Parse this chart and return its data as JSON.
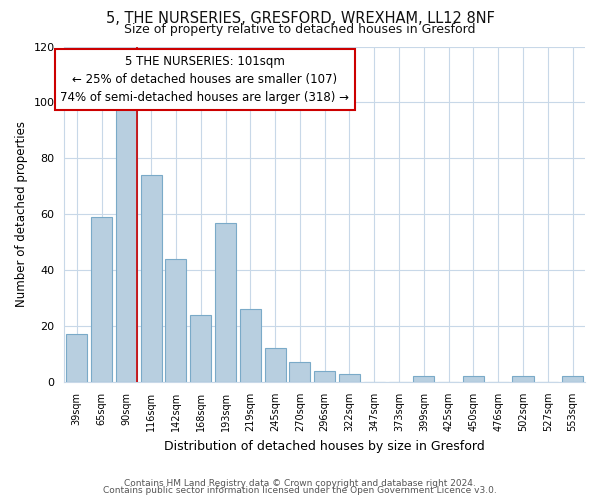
{
  "title": "5, THE NURSERIES, GRESFORD, WREXHAM, LL12 8NF",
  "subtitle": "Size of property relative to detached houses in Gresford",
  "xlabel": "Distribution of detached houses by size in Gresford",
  "ylabel": "Number of detached properties",
  "categories": [
    "39sqm",
    "65sqm",
    "90sqm",
    "116sqm",
    "142sqm",
    "168sqm",
    "193sqm",
    "219sqm",
    "245sqm",
    "270sqm",
    "296sqm",
    "322sqm",
    "347sqm",
    "373sqm",
    "399sqm",
    "425sqm",
    "450sqm",
    "476sqm",
    "502sqm",
    "527sqm",
    "553sqm"
  ],
  "values": [
    17,
    59,
    98,
    74,
    44,
    24,
    57,
    26,
    12,
    7,
    4,
    3,
    0,
    0,
    2,
    0,
    2,
    0,
    2,
    0,
    2
  ],
  "bar_color": "#b8cfe0",
  "bar_edge_color": "#7aaac8",
  "redline_index": 2,
  "ylim": [
    0,
    120
  ],
  "annotation_line1": "5 THE NURSERIES: 101sqm",
  "annotation_line2": "← 25% of detached houses are smaller (107)",
  "annotation_line3": "74% of semi-detached houses are larger (318) →",
  "footer1": "Contains HM Land Registry data © Crown copyright and database right 2024.",
  "footer2": "Contains public sector information licensed under the Open Government Licence v3.0.",
  "bg_color": "#ffffff",
  "grid_color": "#c8d8e8"
}
